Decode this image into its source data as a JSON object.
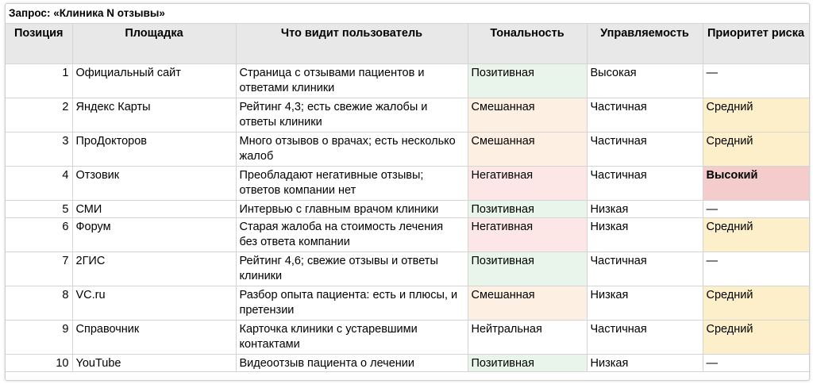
{
  "query_label": "Запрос: «Клиника N отзывы»",
  "headers": {
    "position": "Позиция",
    "platform": "Площадка",
    "user_sees": "Что видит пользователь",
    "tone": "Тональность",
    "control": "Управляемость",
    "priority": "Приоритет риска"
  },
  "rows": [
    {
      "pos": "1",
      "platform": "Официальный сайт",
      "sees": "Страница с отзывами пациентов и ответами клиники",
      "tone": "Позитивная",
      "tone_kind": "pos",
      "control": "Высокая",
      "priority": "—",
      "priority_kind": "none"
    },
    {
      "pos": "2",
      "platform": "Яндекс Карты",
      "sees": "Рейтинг 4,3; есть свежие жалобы и ответы клиники",
      "tone": "Смешанная",
      "tone_kind": "mix",
      "control": "Частичная",
      "priority": "Средний",
      "priority_kind": "mid"
    },
    {
      "pos": "3",
      "platform": "ПроДокторов",
      "sees": "Много отзывов о врачах; есть несколько жалоб",
      "tone": "Смешанная",
      "tone_kind": "mix",
      "control": "Частичная",
      "priority": "Средний",
      "priority_kind": "mid"
    },
    {
      "pos": "4",
      "platform": "Отзовик",
      "sees": "Преобладают негативные отзывы; ответов компании нет",
      "tone": "Негативная",
      "tone_kind": "neg",
      "control": "Частичная",
      "priority": "Высокий",
      "priority_kind": "high"
    },
    {
      "pos": "5",
      "platform": "СМИ",
      "sees": "Интервью с главным врачом клиники",
      "tone": "Позитивная",
      "tone_kind": "pos",
      "control": "Низкая",
      "priority": "—",
      "priority_kind": "none"
    },
    {
      "pos": "6",
      "platform": "Форум",
      "sees": "Старая жалоба на стоимость лечения без ответа компании",
      "tone": "Негативная",
      "tone_kind": "neg",
      "control": "Низкая",
      "priority": "Средний",
      "priority_kind": "mid"
    },
    {
      "pos": "7",
      "platform": "2ГИС",
      "sees": "Рейтинг 4,6; свежие отзывы и ответы клиники",
      "tone": "Позитивная",
      "tone_kind": "pos",
      "control": "Частичная",
      "priority": "—",
      "priority_kind": "none"
    },
    {
      "pos": "8",
      "platform": "VC.ru",
      "sees": "Разбор опыта пациента: есть и плюсы, и претензии",
      "tone": "Смешанная",
      "tone_kind": "mix",
      "control": "Низкая",
      "priority": "Средний",
      "priority_kind": "mid"
    },
    {
      "pos": "9",
      "platform": "Справочник",
      "sees": "Карточка клиники с устаревшими контактами",
      "tone": "Нейтральная",
      "tone_kind": "neu",
      "control": "Частичная",
      "priority": "Средний",
      "priority_kind": "mid"
    },
    {
      "pos": "10",
      "platform": "YouTube",
      "sees": "Видеоотзыв пациента о лечении",
      "tone": "Позитивная",
      "tone_kind": "pos",
      "control": "Низкая",
      "priority": "—",
      "priority_kind": "none"
    }
  ],
  "colors": {
    "header_bg": "#e8e8e8",
    "positive": "#e9f5ea",
    "mixed": "#fdf0e2",
    "negative": "#fce6e6",
    "priority_medium": "#fcefc9",
    "priority_high": "#f4cccc"
  }
}
